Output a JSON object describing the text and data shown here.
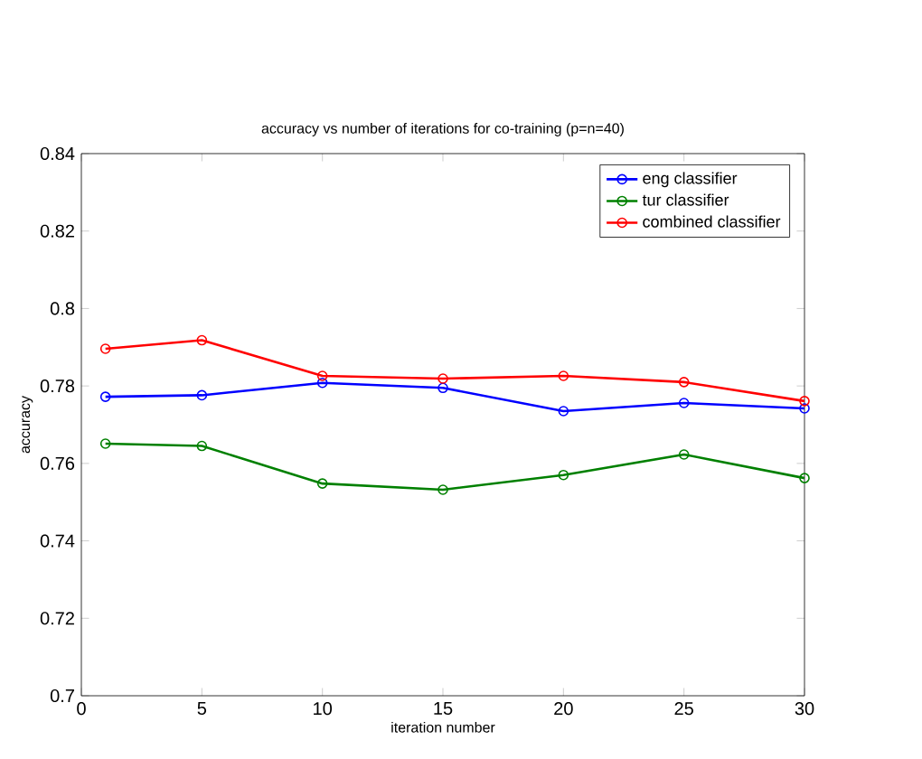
{
  "chart_data": {
    "type": "line",
    "title": "accuracy vs number of iterations for co-training (p=n=40)",
    "xlabel": "iteration number",
    "ylabel": "accuracy",
    "x": [
      1,
      5,
      10,
      15,
      20,
      25,
      30
    ],
    "series": [
      {
        "name": "eng classifier",
        "color": "#0000ff",
        "values": [
          0.7772,
          0.7776,
          0.7808,
          0.7795,
          0.7735,
          0.7756,
          0.7742
        ]
      },
      {
        "name": "tur classifier",
        "color": "#008000",
        "values": [
          0.7651,
          0.7645,
          0.7548,
          0.7532,
          0.757,
          0.7623,
          0.7562
        ]
      },
      {
        "name": "combined classifier",
        "color": "#ff0000",
        "values": [
          0.7896,
          0.7918,
          0.7826,
          0.7819,
          0.7826,
          0.781,
          0.7761
        ]
      }
    ],
    "xlim": [
      0,
      30
    ],
    "ylim": [
      0.7,
      0.84
    ],
    "xticks": [
      0,
      5,
      10,
      15,
      20,
      25,
      30
    ],
    "yticks": [
      0.7,
      0.72,
      0.74,
      0.76,
      0.78,
      0.8,
      0.82,
      0.84
    ],
    "grid": false,
    "legend": "top right",
    "marker": "circle",
    "line_style": "solid"
  }
}
